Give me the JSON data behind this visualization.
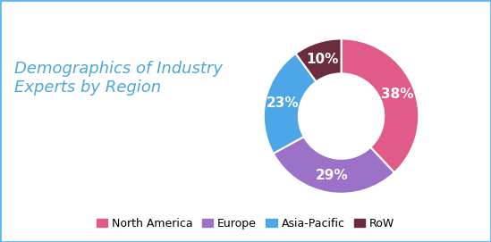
{
  "title": "Demographics of Industry\nExperts by Region",
  "title_color": "#4da6d9",
  "title_fontsize": 13,
  "slices": [
    38,
    29,
    23,
    10
  ],
  "labels": [
    "North America",
    "Europe",
    "Asia-Pacific",
    "RoW"
  ],
  "colors": [
    "#e05a8a",
    "#9b72c8",
    "#4da6e8",
    "#6b2d3e"
  ],
  "pct_labels": [
    "38%",
    "29%",
    "23%",
    "10%"
  ],
  "background_color": "#ffffff",
  "border_color": "#5bb8f5",
  "donut_width": 0.45,
  "legend_fontsize": 9,
  "pct_fontsize": 11,
  "pct_color": "#ffffff",
  "startangle": 90
}
